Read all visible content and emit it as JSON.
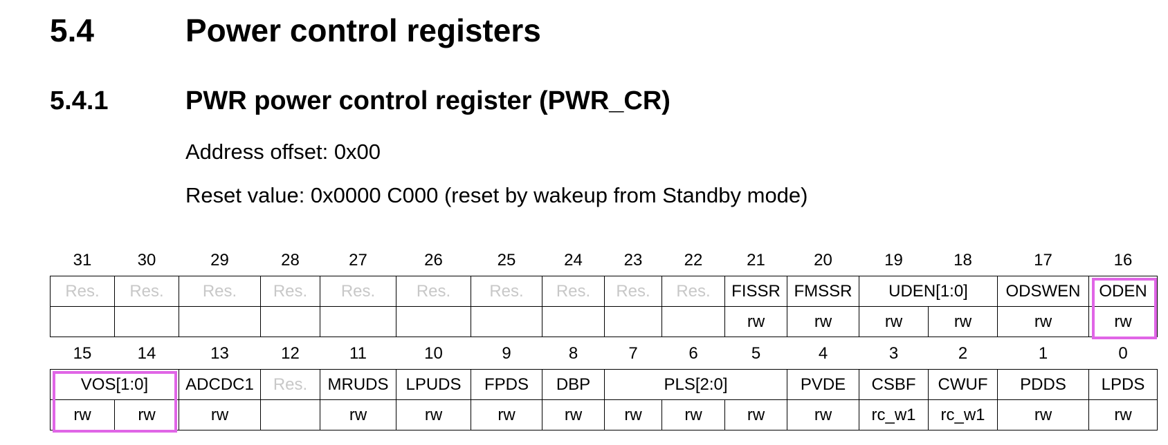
{
  "section": {
    "number": "5.4",
    "title": "Power control registers"
  },
  "subsection": {
    "number": "5.4.1",
    "title": "PWR power control register (PWR_CR)"
  },
  "address_offset": "Address offset: 0x00",
  "reset_value": "Reset value: 0x0000 C000 (reset by wakeup from Standby mode)",
  "highlight_color": "#e066e6",
  "reserved_color": "#c8c8c8",
  "register_high": {
    "bits": [
      "31",
      "30",
      "29",
      "28",
      "27",
      "26",
      "25",
      "24",
      "23",
      "22",
      "21",
      "20",
      "19",
      "18",
      "17",
      "16"
    ],
    "fields": [
      "Res.",
      "Res.",
      "Res.",
      "Res.",
      "Res.",
      "Res.",
      "Res.",
      "Res.",
      "Res.",
      "Res.",
      "FISSR",
      "FMSSR",
      "UDEN[1:0]",
      "ODSWEN",
      "ODEN"
    ],
    "access": [
      "",
      "",
      "",
      "",
      "",
      "",
      "",
      "",
      "",
      "",
      "rw",
      "rw",
      "rw",
      "rw",
      "rw",
      "rw"
    ]
  },
  "register_low": {
    "bits": [
      "15",
      "14",
      "13",
      "12",
      "11",
      "10",
      "9",
      "8",
      "7",
      "6",
      "5",
      "4",
      "3",
      "2",
      "1",
      "0"
    ],
    "fields": [
      "VOS[1:0]",
      "ADCDC1",
      "Res.",
      "MRUDS",
      "LPUDS",
      "FPDS",
      "DBP",
      "PLS[2:0]",
      "PVDE",
      "CSBF",
      "CWUF",
      "PDDS",
      "LPDS"
    ],
    "access": [
      "rw",
      "rw",
      "rw",
      "",
      "rw",
      "rw",
      "rw",
      "rw",
      "rw",
      "rw",
      "rw",
      "rw",
      "rc_w1",
      "rc_w1",
      "rw",
      "rw"
    ]
  }
}
